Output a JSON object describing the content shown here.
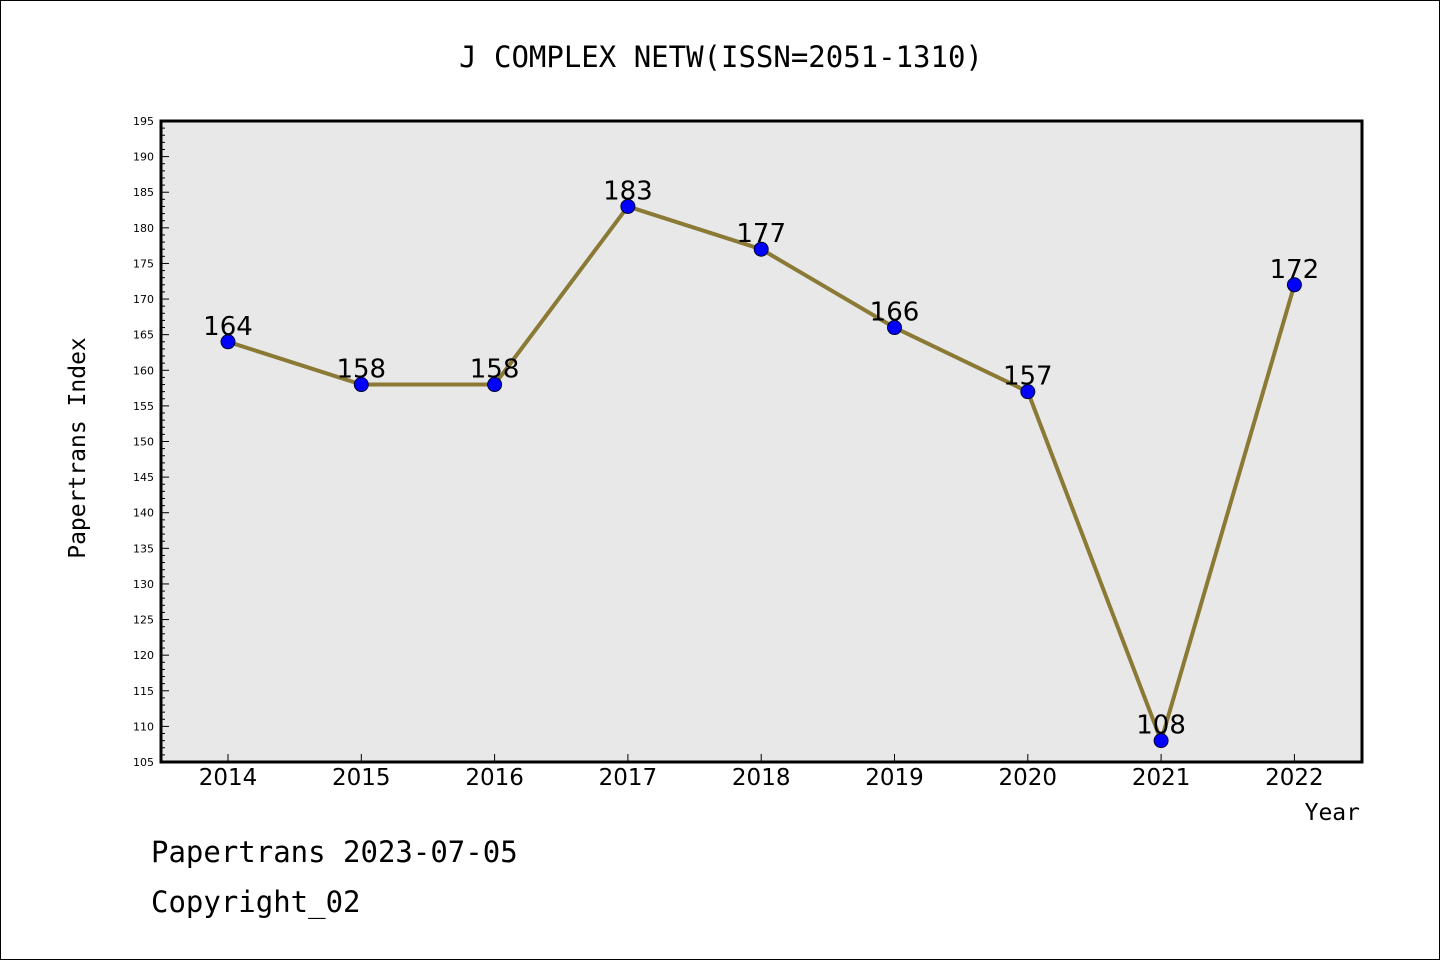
{
  "chart_data": {
    "type": "line",
    "title": "J COMPLEX NETW(ISSN=2051-1310)",
    "xlabel": "Year",
    "ylabel": "Papertrans Index",
    "categories": [
      "2014",
      "2015",
      "2016",
      "2017",
      "2018",
      "2019",
      "2020",
      "2021",
      "2022"
    ],
    "series": [
      {
        "values": [
          164,
          158,
          158,
          183,
          177,
          166,
          157,
          108,
          172
        ]
      }
    ],
    "data_labels": [
      "164",
      "158",
      "158",
      "183",
      "177",
      "166",
      "157",
      "108",
      "172"
    ],
    "ylim": [
      105,
      195
    ],
    "yticks": [
      "105",
      "110",
      "115",
      "120",
      "125",
      "130",
      "135",
      "140",
      "145",
      "150",
      "155",
      "160",
      "165",
      "170",
      "175",
      "180",
      "185",
      "190",
      "195"
    ],
    "grid": false,
    "colors": {
      "line": "#8b7a35",
      "marker": "#0000ff",
      "plot_bg": "#e8e8e8"
    }
  },
  "footer": {
    "date_line": "Papertrans 2023-07-05",
    "copyright": "Copyright_02"
  }
}
